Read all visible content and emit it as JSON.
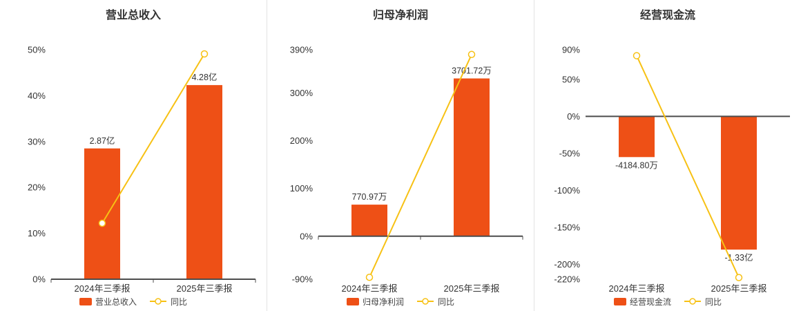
{
  "colors": {
    "bar": "#ee5016",
    "line": "#f7c114",
    "title": "#333333",
    "axis_label": "#333333",
    "axis_line": "#4c4c4c",
    "divider": "#e3e3e3"
  },
  "chart_data": [
    {
      "type": "bar-line-combo",
      "title": "营业总收入",
      "categories": [
        "2024年三季报",
        "2025年三季报"
      ],
      "bar_series": {
        "name": "营业总收入",
        "value_labels": [
          "2.87亿",
          "4.28亿"
        ],
        "axis_display_values": [
          28.5,
          42.3
        ]
      },
      "line_series": {
        "name": "同比",
        "values_pct": [
          12.2,
          49.1
        ]
      },
      "axis": {
        "min": 0,
        "max": 50,
        "ticks": [
          {
            "value": 50,
            "label": "50%"
          },
          {
            "value": 40,
            "label": "40%"
          },
          {
            "value": 30,
            "label": "30%"
          },
          {
            "value": 20,
            "label": "20%"
          },
          {
            "value": 10,
            "label": "10%"
          },
          {
            "value": 0,
            "label": "0%"
          }
        ]
      }
    },
    {
      "type": "bar-line-combo",
      "title": "归母净利润",
      "categories": [
        "2024年三季报",
        "2025年三季报"
      ],
      "bar_series": {
        "name": "归母净利润",
        "value_labels": [
          "770.97万",
          "3701.72万"
        ],
        "axis_display_values": [
          66,
          330
        ]
      },
      "line_series": {
        "name": "同比",
        "values_pct": [
          -86,
          380.2
        ]
      },
      "axis": {
        "min": -90,
        "max": 390,
        "ticks": [
          {
            "value": 390,
            "label": "390%"
          },
          {
            "value": 300,
            "label": "300%"
          },
          {
            "value": 200,
            "label": "200%"
          },
          {
            "value": 100,
            "label": "100%"
          },
          {
            "value": 0,
            "label": "0%"
          },
          {
            "value": -90,
            "label": "-90%"
          }
        ]
      }
    },
    {
      "type": "bar-line-combo",
      "title": "经营现金流",
      "categories": [
        "2024年三季报",
        "2025年三季报"
      ],
      "bar_series": {
        "name": "经营现金流",
        "value_labels": [
          "-4184.80万",
          "-1.33亿"
        ],
        "axis_display_values": [
          -55,
          -180
        ]
      },
      "line_series": {
        "name": "同比",
        "values_pct": [
          82,
          -217.8
        ]
      },
      "axis": {
        "min": -220,
        "max": 90,
        "ticks": [
          {
            "value": 90,
            "label": "90%"
          },
          {
            "value": 50,
            "label": "50%"
          },
          {
            "value": 0,
            "label": "0%"
          },
          {
            "value": -50,
            "label": "-50%"
          },
          {
            "value": -100,
            "label": "-100%"
          },
          {
            "value": -150,
            "label": "-150%"
          },
          {
            "value": -200,
            "label": "-200%"
          },
          {
            "value": -220,
            "label": "-220%"
          }
        ]
      }
    }
  ]
}
